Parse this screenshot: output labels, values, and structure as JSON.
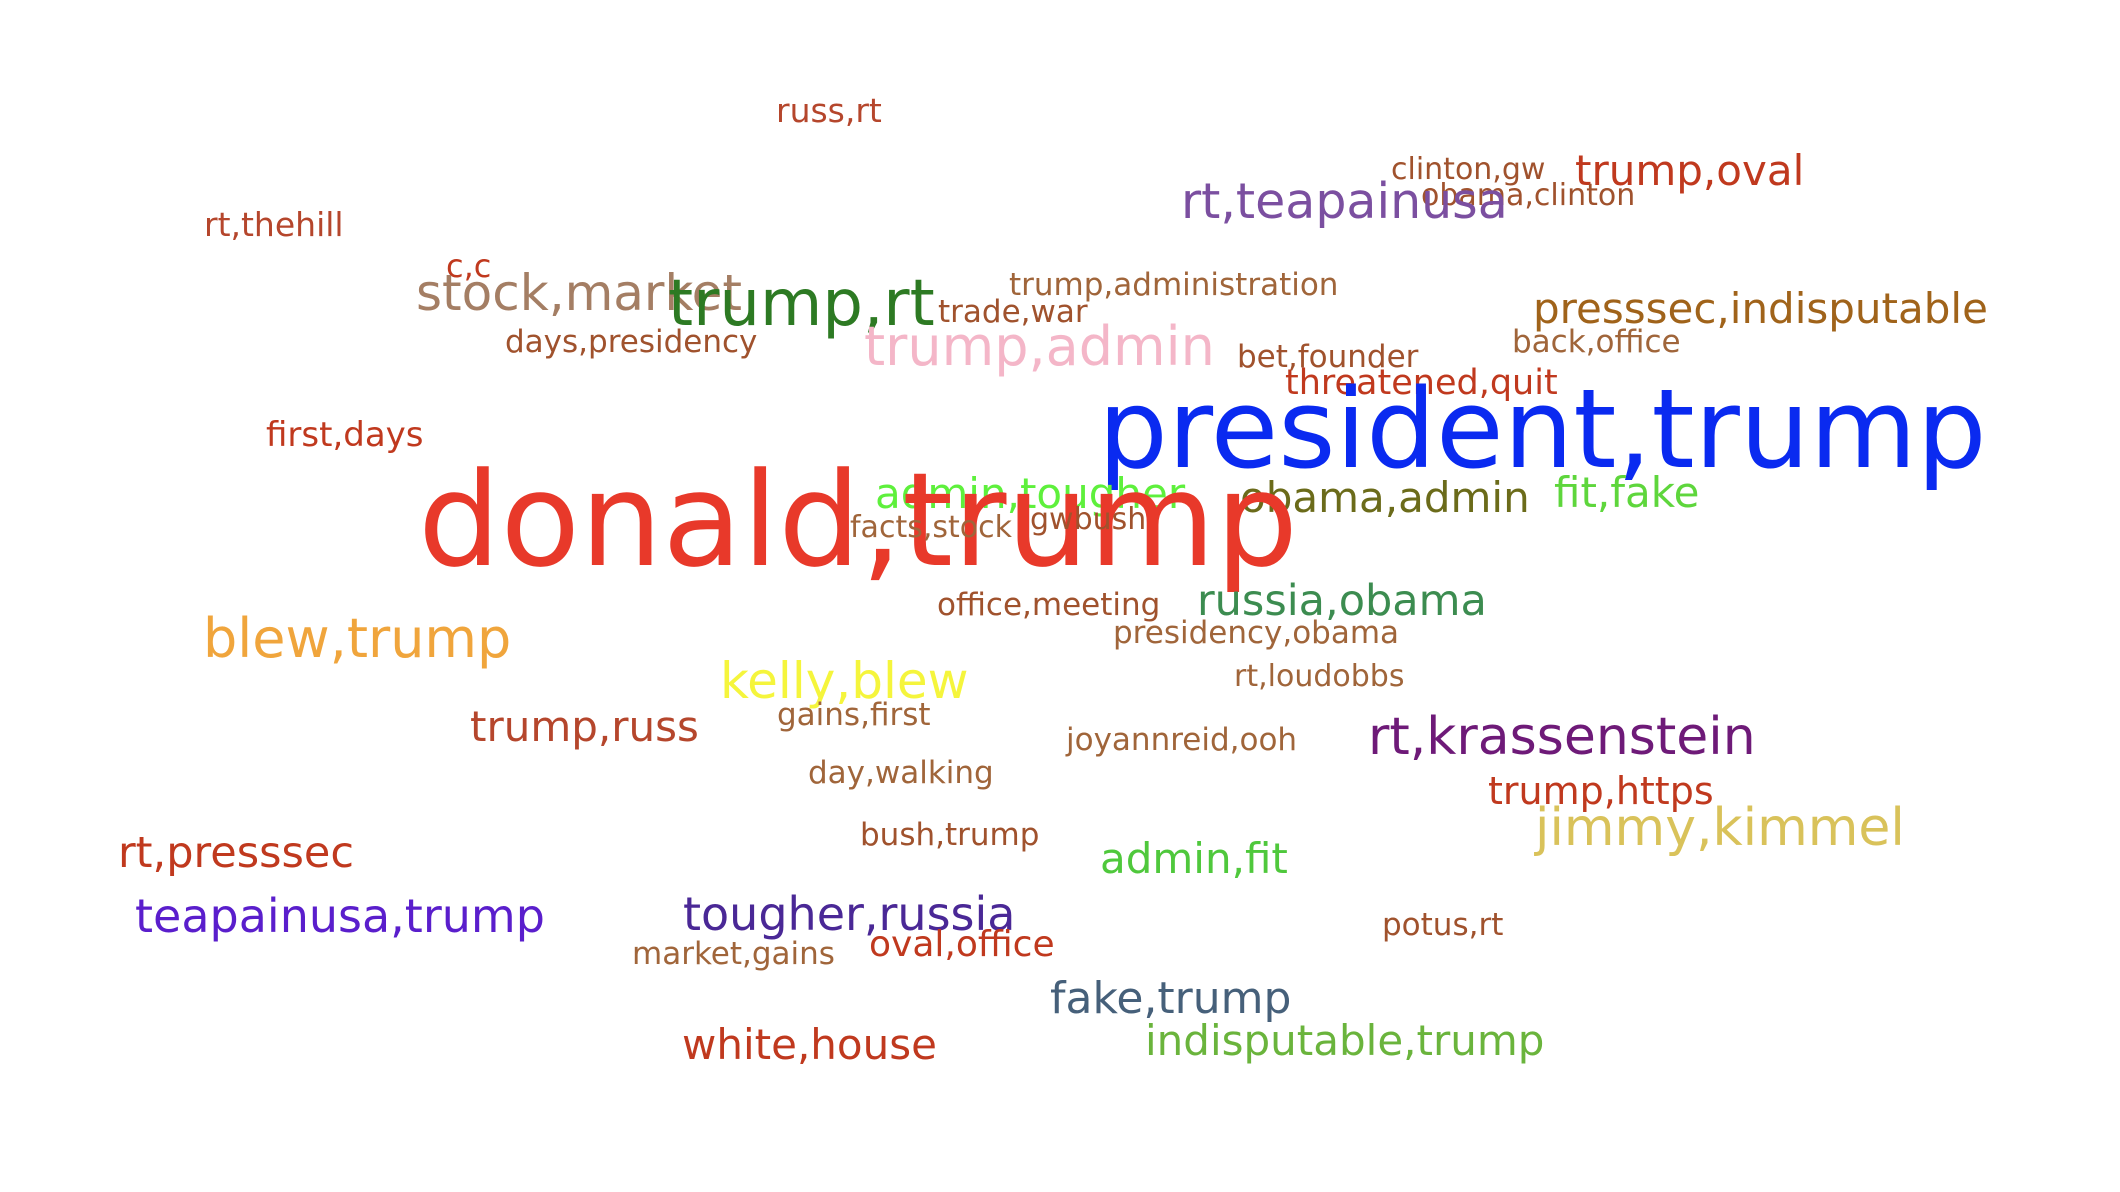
{
  "word_cloud": {
    "words": [
      {
        "text": "russ,rt",
        "color": "#b5462c"
      },
      {
        "text": "clinton,gw",
        "color": "#a0522d"
      },
      {
        "text": "trump,oval",
        "color": "#c0391e"
      },
      {
        "text": "obama,clinton",
        "color": "#a0522d"
      },
      {
        "text": "rt,teapainusa",
        "color": "#7b4fa0"
      },
      {
        "text": "rt,thehill",
        "color": "#b5462c"
      },
      {
        "text": "c,c",
        "color": "#c0391e"
      },
      {
        "text": "stock,market",
        "color": "#a47e64"
      },
      {
        "text": "trump,rt",
        "color": "#2d7a23"
      },
      {
        "text": "trump,administration",
        "color": "#a0653a"
      },
      {
        "text": "trade,war",
        "color": "#a0522d"
      },
      {
        "text": "presssec,indisputable",
        "color": "#a0631a"
      },
      {
        "text": "days,presidency",
        "color": "#a0522d"
      },
      {
        "text": "trump,admin",
        "color": "#f4b6c8"
      },
      {
        "text": "back,office",
        "color": "#a0653a"
      },
      {
        "text": "bet,founder",
        "color": "#a0522d"
      },
      {
        "text": "threatened,quit",
        "color": "#c0391e"
      },
      {
        "text": "first,days",
        "color": "#c0391e"
      },
      {
        "text": "president,trump",
        "color": "#0a2af0"
      },
      {
        "text": "admin,tougher",
        "color": "#5ef03c"
      },
      {
        "text": "obama,admin",
        "color": "#6b6b1a"
      },
      {
        "text": "fit,fake",
        "color": "#5ed63c"
      },
      {
        "text": "donald,trump",
        "color": "#e8392a"
      },
      {
        "text": "facts,stock",
        "color": "#a0653a"
      },
      {
        "text": "gwbush",
        "color": "#a0522d"
      },
      {
        "text": "office,meeting",
        "color": "#a0522d"
      },
      {
        "text": "russia,obama",
        "color": "#3c8c50"
      },
      {
        "text": "blew,trump",
        "color": "#f0a53c"
      },
      {
        "text": "presidency,obama",
        "color": "#a0653a"
      },
      {
        "text": "kelly,blew",
        "color": "#f5f53c"
      },
      {
        "text": "rt,loudobbs",
        "color": "#a0653a"
      },
      {
        "text": "trump,russ",
        "color": "#b5462c"
      },
      {
        "text": "gains,first",
        "color": "#a0653a"
      },
      {
        "text": "joyannreid,ooh",
        "color": "#a0653a"
      },
      {
        "text": "rt,krassenstein",
        "color": "#6e1a78"
      },
      {
        "text": "day,walking",
        "color": "#a0653a"
      },
      {
        "text": "trump,https",
        "color": "#c0391e"
      },
      {
        "text": "jimmy,kimmel",
        "color": "#d9c25a"
      },
      {
        "text": "rt,presssec",
        "color": "#c0391e"
      },
      {
        "text": "bush,trump",
        "color": "#a0522d"
      },
      {
        "text": "admin,fit",
        "color": "#4fc83c"
      },
      {
        "text": "teapainusa,trump",
        "color": "#5a1ecc"
      },
      {
        "text": "tougher,russia",
        "color": "#4a2896"
      },
      {
        "text": "potus,rt",
        "color": "#a0522d"
      },
      {
        "text": "oval,office",
        "color": "#c0391e"
      },
      {
        "text": "market,gains",
        "color": "#a0653a"
      },
      {
        "text": "fake,trump",
        "color": "#46607a"
      },
      {
        "text": "white,house",
        "color": "#c0391e"
      },
      {
        "text": "indisputable,trump",
        "color": "#6ab43c"
      }
    ]
  }
}
